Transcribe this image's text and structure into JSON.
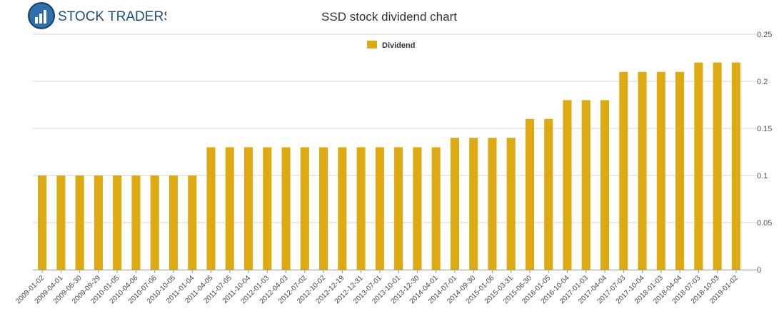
{
  "logo": {
    "text": "STOCK TRADERS",
    "accent": "#1f4e79"
  },
  "chart_data": {
    "type": "bar",
    "title": "SSD stock dividend chart",
    "xlabel": "",
    "ylabel": "",
    "ylim": [
      0,
      0.25
    ],
    "yticks": [
      0,
      0.05,
      0.1,
      0.15,
      0.2,
      0.25
    ],
    "ytick_labels": [
      "0",
      "0.05",
      "0.1",
      "0.15",
      "0.2",
      "0.25"
    ],
    "grid": true,
    "legend_position": "top-center",
    "bar_color": "#deaa13",
    "categories": [
      "2009-01-02",
      "2009-04-01",
      "2009-06-30",
      "2009-09-29",
      "2010-01-05",
      "2010-04-06",
      "2010-07-06",
      "2010-10-05",
      "2011-01-04",
      "2011-04-05",
      "2011-07-05",
      "2011-10-04",
      "2012-01-03",
      "2012-04-03",
      "2012-07-02",
      "2012-10-02",
      "2012-12-19",
      "2012-12-31",
      "2013-07-01",
      "2013-10-01",
      "2013-12-30",
      "2014-04-01",
      "2014-07-01",
      "2014-09-30",
      "2015-01-06",
      "2015-03-31",
      "2015-06-30",
      "2016-01-05",
      "2016-10-04",
      "2017-01-03",
      "2017-04-04",
      "2017-07-03",
      "2017-10-04",
      "2018-01-03",
      "2018-04-04",
      "2018-07-03",
      "2018-10-03",
      "2019-01-02"
    ],
    "series": [
      {
        "name": "Dividend",
        "values": [
          0.1,
          0.1,
          0.1,
          0.1,
          0.1,
          0.1,
          0.1,
          0.1,
          0.1,
          0.13,
          0.13,
          0.13,
          0.13,
          0.13,
          0.13,
          0.13,
          0.13,
          0.13,
          0.13,
          0.13,
          0.13,
          0.13,
          0.14,
          0.14,
          0.14,
          0.14,
          0.16,
          0.16,
          0.18,
          0.18,
          0.18,
          0.21,
          0.21,
          0.21,
          0.21,
          0.22,
          0.22,
          0.22
        ]
      }
    ]
  }
}
